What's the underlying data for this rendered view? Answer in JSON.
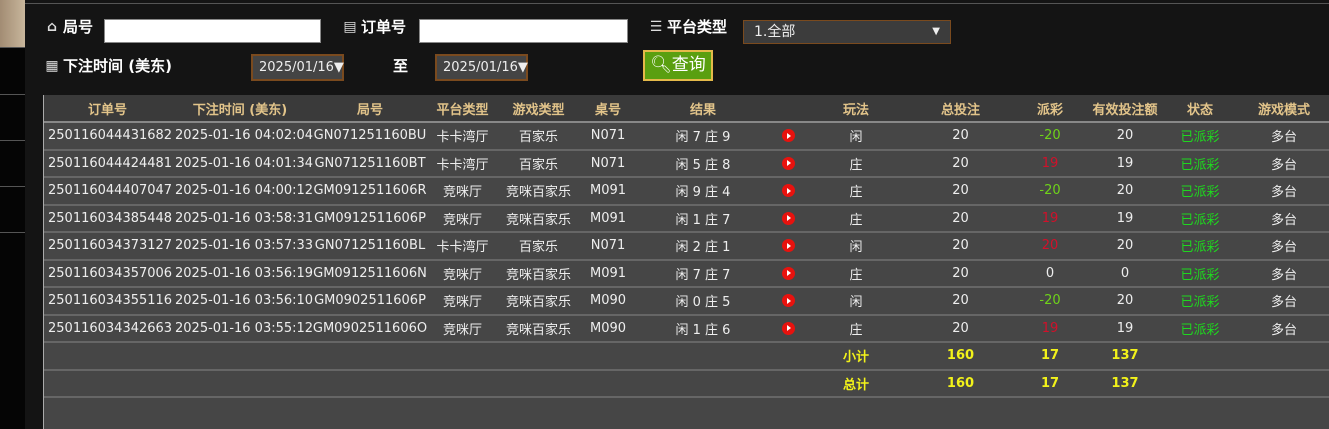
{
  "filters": {
    "round_label": "局号",
    "round_value": "",
    "order_label": "订单号",
    "order_value": "",
    "platform_label": "平台类型",
    "platform_value": "1.全部",
    "time_label": "下注时间 (美东)",
    "date_from": "2025/01/16▼",
    "to_label": "至",
    "date_to": "2025/01/16▼",
    "query_label": "查询"
  },
  "table": {
    "headers": [
      "订单号",
      "下注时间 (美东)",
      "局号",
      "平台类型",
      "游戏类型",
      "桌号",
      "结果",
      "",
      "玩法",
      "总投注",
      "派彩",
      "有效投注额",
      "状态",
      "游戏模式"
    ],
    "rows": [
      [
        "250116044431682",
        "2025-01-16 04:02:04",
        "GN071251160BU",
        "卡卡湾厅",
        "百家乐",
        "N071",
        "闲 7 庄 9",
        "",
        "闲",
        "20",
        "-20",
        "20",
        "已派彩",
        "多台"
      ],
      [
        "250116044424481",
        "2025-01-16 04:01:34",
        "GN071251160BT",
        "卡卡湾厅",
        "百家乐",
        "N071",
        "闲 5 庄 8",
        "",
        "庄",
        "20",
        "19",
        "19",
        "已派彩",
        "多台"
      ],
      [
        "250116044407047",
        "2025-01-16 04:00:12",
        "GM0912511606R",
        "竞咪厅",
        "竞咪百家乐",
        "M091",
        "闲 9 庄 4",
        "",
        "庄",
        "20",
        "-20",
        "20",
        "已派彩",
        "多台"
      ],
      [
        "250116034385448",
        "2025-01-16 03:58:31",
        "GM0912511606P",
        "竞咪厅",
        "竞咪百家乐",
        "M091",
        "闲 1 庄 7",
        "",
        "庄",
        "20",
        "19",
        "19",
        "已派彩",
        "多台"
      ],
      [
        "250116034373127",
        "2025-01-16 03:57:33",
        "GN071251160BL",
        "卡卡湾厅",
        "百家乐",
        "N071",
        "闲 2 庄 1",
        "",
        "闲",
        "20",
        "20",
        "20",
        "已派彩",
        "多台"
      ],
      [
        "250116034357006",
        "2025-01-16 03:56:19",
        "GM0912511606N",
        "竞咪厅",
        "竞咪百家乐",
        "M091",
        "闲 7 庄 7",
        "",
        "庄",
        "20",
        "0",
        "0",
        "已派彩",
        "多台"
      ],
      [
        "250116034355116",
        "2025-01-16 03:56:10",
        "GM0902511606P",
        "竞咪厅",
        "竞咪百家乐",
        "M090",
        "闲 0 庄 5",
        "",
        "闲",
        "20",
        "-20",
        "20",
        "已派彩",
        "多台"
      ],
      [
        "250116034342663",
        "2025-01-16 03:55:12",
        "GM0902511606O",
        "竞咪厅",
        "竞咪百家乐",
        "M090",
        "闲 1 庄 6",
        "",
        "庄",
        "20",
        "19",
        "19",
        "已派彩",
        "多台"
      ]
    ],
    "subtotal": {
      "label": "小计",
      "bet": "160",
      "payout": "17",
      "valid": "137"
    },
    "total": {
      "label": "总计",
      "bet": "160",
      "payout": "17",
      "valid": "137"
    }
  },
  "colors": {
    "header_text": "#e2c48a",
    "payout_negative": "#6fd21a",
    "payout_positive": "#d2102a",
    "status": "#1ed81e",
    "sum_text": "#f2f21a",
    "query_button": "#5a9f10"
  }
}
